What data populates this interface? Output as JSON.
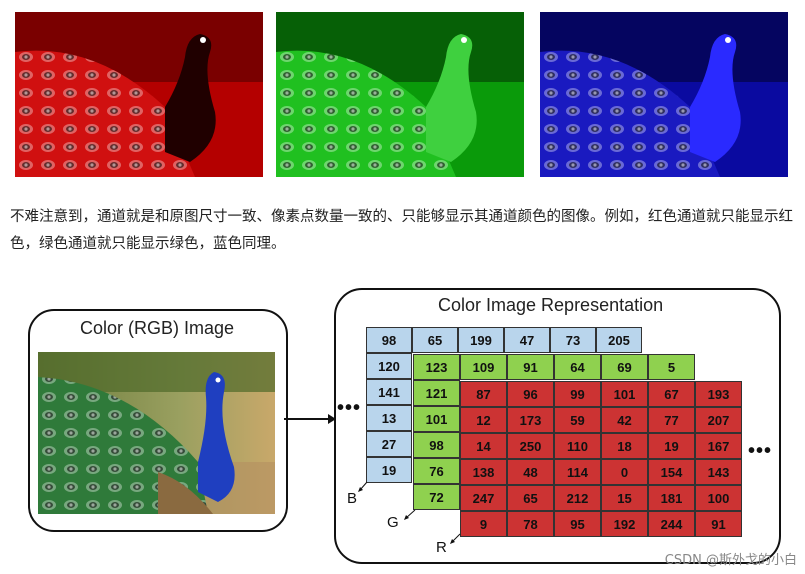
{
  "images": {
    "red": "red-channel-peacock",
    "green": "green-channel-peacock",
    "blue": "blue-channel-peacock",
    "rgb": "color-peacock"
  },
  "paragraph": "不难注意到，通道就是和原图尺寸一致、像素点数量一致的、只能够显示其通道颜色的图像。例如，红色通道就只能显示红色，绿色通道就只能显示绿色，蓝色同理。",
  "diagram": {
    "left_title": "Color (RGB) Image",
    "right_title": "Color Image Representation",
    "blue_top_row": [
      "98",
      "65",
      "199",
      "47",
      "73",
      "205"
    ],
    "blue_left_col": [
      "120",
      "141",
      "13",
      "27",
      "19"
    ],
    "green_top_row": [
      "123",
      "109",
      "91",
      "64",
      "69",
      "5"
    ],
    "green_left_col": [
      "121",
      "101",
      "98",
      "76",
      "72"
    ],
    "red_rows": [
      [
        "87",
        "96",
        "99",
        "101",
        "67",
        "193"
      ],
      [
        "12",
        "173",
        "59",
        "42",
        "77",
        "207"
      ],
      [
        "14",
        "250",
        "110",
        "18",
        "19",
        "167"
      ],
      [
        "138",
        "48",
        "114",
        "0",
        "154",
        "143"
      ],
      [
        "247",
        "65",
        "212",
        "15",
        "181",
        "100"
      ],
      [
        "9",
        "78",
        "95",
        "192",
        "244",
        "91"
      ]
    ],
    "dots_left": "•••",
    "dots_right": "•••",
    "label_b": "B",
    "label_g": "G",
    "label_r": "R"
  },
  "watermark": "CSDN @斯外戈的小白",
  "colors": {
    "blue_cell": "#b9d5ec",
    "green_cell": "#8fd14f",
    "red_cell": "#cc3333"
  }
}
